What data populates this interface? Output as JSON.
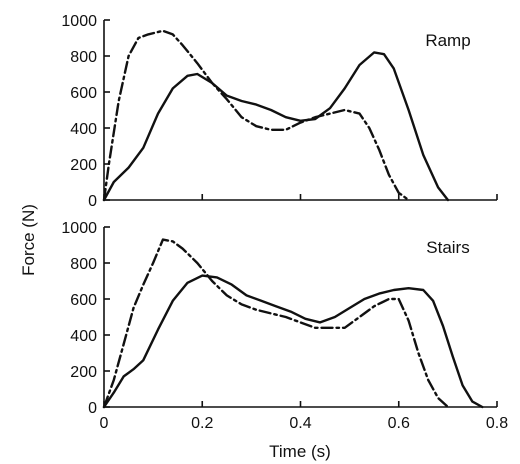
{
  "ylabel": "Force (N)",
  "xlabel": "Time (s)",
  "x_ticks": [
    "0",
    "0.2",
    "0.4",
    "0.6",
    "0.8"
  ],
  "colors": {
    "ink": "#111111",
    "background": "#ffffff"
  },
  "chart_data": [
    {
      "type": "line",
      "title": "Ramp",
      "xlabel": "",
      "ylabel": "",
      "xlim": [
        0,
        0.8
      ],
      "ylim": [
        0,
        1000
      ],
      "y_ticks": [
        "0",
        "200",
        "400",
        "600",
        "800",
        "1000"
      ],
      "grid": false,
      "series": [
        {
          "style": "solid",
          "x": [
            0,
            0.02,
            0.05,
            0.08,
            0.11,
            0.14,
            0.17,
            0.19,
            0.22,
            0.25,
            0.28,
            0.31,
            0.34,
            0.37,
            0.4,
            0.43,
            0.46,
            0.49,
            0.52,
            0.55,
            0.57,
            0.59,
            0.62,
            0.65,
            0.68,
            0.7
          ],
          "values": [
            0,
            100,
            180,
            290,
            480,
            620,
            690,
            700,
            650,
            580,
            550,
            530,
            500,
            460,
            440,
            450,
            510,
            620,
            750,
            820,
            810,
            730,
            500,
            250,
            70,
            0
          ]
        },
        {
          "style": "dash-dot",
          "x": [
            0,
            0.01,
            0.03,
            0.05,
            0.07,
            0.09,
            0.12,
            0.14,
            0.16,
            0.19,
            0.22,
            0.25,
            0.28,
            0.31,
            0.34,
            0.37,
            0.4,
            0.43,
            0.46,
            0.49,
            0.52,
            0.54,
            0.56,
            0.58,
            0.6,
            0.62
          ],
          "values": [
            0,
            200,
            550,
            800,
            900,
            920,
            940,
            920,
            860,
            760,
            650,
            560,
            460,
            410,
            390,
            390,
            430,
            460,
            480,
            500,
            480,
            400,
            280,
            140,
            40,
            0
          ]
        }
      ]
    },
    {
      "type": "line",
      "title": "Stairs",
      "xlabel": "Time (s)",
      "ylabel": "",
      "xlim": [
        0,
        0.8
      ],
      "ylim": [
        0,
        1000
      ],
      "y_ticks": [
        "0",
        "200",
        "400",
        "600",
        "800",
        "1000"
      ],
      "grid": false,
      "series": [
        {
          "style": "solid",
          "x": [
            0,
            0.02,
            0.04,
            0.06,
            0.08,
            0.11,
            0.14,
            0.17,
            0.2,
            0.23,
            0.26,
            0.29,
            0.32,
            0.35,
            0.38,
            0.41,
            0.44,
            0.47,
            0.5,
            0.53,
            0.56,
            0.59,
            0.62,
            0.65,
            0.67,
            0.69,
            0.71,
            0.73,
            0.75,
            0.77
          ],
          "values": [
            0,
            80,
            170,
            210,
            260,
            430,
            590,
            690,
            730,
            720,
            680,
            620,
            590,
            560,
            530,
            490,
            470,
            500,
            550,
            600,
            630,
            650,
            660,
            650,
            590,
            450,
            280,
            120,
            30,
            0
          ]
        },
        {
          "style": "dash-dot",
          "x": [
            0,
            0.02,
            0.04,
            0.06,
            0.08,
            0.1,
            0.12,
            0.14,
            0.16,
            0.19,
            0.22,
            0.25,
            0.28,
            0.31,
            0.34,
            0.37,
            0.4,
            0.43,
            0.46,
            0.49,
            0.52,
            0.55,
            0.58,
            0.6,
            0.62,
            0.64,
            0.66,
            0.68,
            0.7
          ],
          "values": [
            0,
            150,
            350,
            550,
            680,
            800,
            930,
            920,
            880,
            800,
            700,
            620,
            570,
            540,
            520,
            500,
            470,
            440,
            440,
            440,
            500,
            560,
            600,
            600,
            480,
            300,
            150,
            50,
            0
          ]
        }
      ]
    }
  ]
}
